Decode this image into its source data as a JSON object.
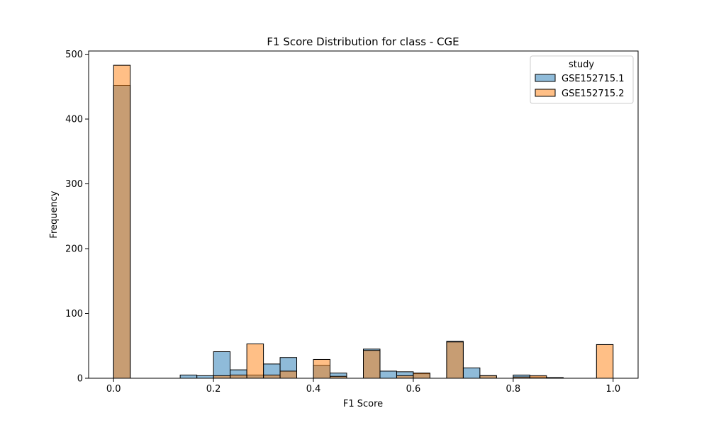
{
  "chart_data": {
    "type": "bar",
    "subtype": "histogram-overlay",
    "title": "F1 Score Distribution for class - CGE",
    "xlabel": "F1 Score",
    "ylabel": "Frequency",
    "xlim": [
      -0.05,
      1.05
    ],
    "ylim": [
      0,
      505
    ],
    "xticks": [
      0.0,
      0.2,
      0.4,
      0.6,
      0.8,
      1.0
    ],
    "xtick_labels": [
      "0.0",
      "0.2",
      "0.4",
      "0.6",
      "0.8",
      "1.0"
    ],
    "yticks": [
      0,
      100,
      200,
      300,
      400,
      500
    ],
    "ytick_labels": [
      "0",
      "100",
      "200",
      "300",
      "400",
      "500"
    ],
    "bin_width": 0.0333,
    "bins_start": [
      0.0,
      0.0333,
      0.0667,
      0.1,
      0.1333,
      0.1667,
      0.2,
      0.2333,
      0.2667,
      0.3,
      0.3333,
      0.3667,
      0.4,
      0.4333,
      0.4667,
      0.5,
      0.5333,
      0.5667,
      0.6,
      0.6333,
      0.6667,
      0.7,
      0.7333,
      0.7667,
      0.8,
      0.8333,
      0.8667,
      0.9,
      0.9333,
      0.9667
    ],
    "legend": {
      "title": "study",
      "position": "top-right"
    },
    "grid": false,
    "series": [
      {
        "name": "GSE152715.1",
        "color": "#1f77b4",
        "values": [
          452,
          0,
          0,
          0,
          5,
          4,
          41,
          13,
          5,
          22,
          32,
          0,
          20,
          8,
          0,
          45,
          11,
          10,
          7,
          0,
          57,
          16,
          4,
          0,
          5,
          2,
          1,
          0,
          0,
          0
        ]
      },
      {
        "name": "GSE152715.2",
        "color": "#ff7f0e",
        "values": [
          483,
          0,
          0,
          0,
          0,
          0,
          4,
          5,
          53,
          5,
          11,
          0,
          29,
          3,
          0,
          43,
          0,
          4,
          8,
          0,
          56,
          0,
          4,
          0,
          2,
          4,
          1,
          0,
          0,
          52
        ]
      }
    ]
  }
}
